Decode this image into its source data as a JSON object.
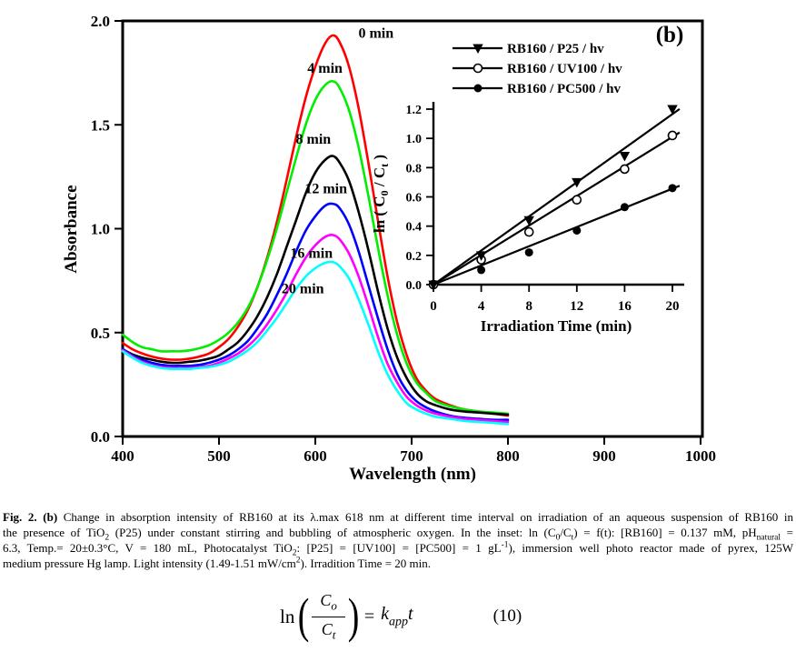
{
  "figure": {
    "panel_label": "(b)"
  },
  "chart_data": [
    {
      "type": "line",
      "title": "",
      "xlabel": "Wavelength (nm)",
      "ylabel": "Absorbance",
      "xlim": [
        400,
        1000
      ],
      "ylim": [
        0.0,
        2.0
      ],
      "grid": false,
      "xtick_values": [
        400,
        500,
        600,
        700,
        800,
        900,
        1000
      ],
      "xtick_labels": [
        "400",
        "500",
        "600",
        "700",
        "800",
        "900",
        "1000"
      ],
      "ytick_values": [
        0.0,
        0.5,
        1.0,
        1.5,
        2.0
      ],
      "ytick_labels": [
        "0.0",
        "0.5",
        "1.0",
        "1.5",
        "2.0"
      ],
      "x": [
        400,
        410,
        420,
        430,
        440,
        450,
        460,
        470,
        480,
        490,
        500,
        510,
        520,
        530,
        540,
        550,
        560,
        570,
        580,
        590,
        600,
        610,
        618,
        625,
        635,
        645,
        655,
        665,
        675,
        685,
        695,
        705,
        715,
        725,
        740,
        755,
        770,
        785,
        800
      ],
      "series": [
        {
          "name": "0 min",
          "color": "#ff0000",
          "peak_nm": 618,
          "peak_abs": 1.93,
          "label_x": 663,
          "label_y": 1.92,
          "values": [
            0.45,
            0.42,
            0.4,
            0.385,
            0.375,
            0.37,
            0.37,
            0.375,
            0.385,
            0.4,
            0.43,
            0.47,
            0.53,
            0.61,
            0.72,
            0.86,
            1.03,
            1.23,
            1.44,
            1.63,
            1.78,
            1.89,
            1.93,
            1.9,
            1.78,
            1.58,
            1.32,
            1.04,
            0.77,
            0.55,
            0.39,
            0.28,
            0.22,
            0.18,
            0.15,
            0.13,
            0.12,
            0.11,
            0.1
          ]
        },
        {
          "name": "4 min",
          "color": "#00ee00",
          "peak_nm": 618,
          "peak_abs": 1.71,
          "label_x": 610,
          "label_y": 1.75,
          "values": [
            0.49,
            0.455,
            0.43,
            0.42,
            0.41,
            0.41,
            0.41,
            0.415,
            0.425,
            0.44,
            0.465,
            0.5,
            0.55,
            0.62,
            0.72,
            0.85,
            1.0,
            1.17,
            1.34,
            1.5,
            1.62,
            1.69,
            1.71,
            1.68,
            1.57,
            1.39,
            1.16,
            0.91,
            0.68,
            0.49,
            0.35,
            0.26,
            0.21,
            0.17,
            0.145,
            0.13,
            0.12,
            0.115,
            0.11
          ]
        },
        {
          "name": "8 min",
          "color": "#000000",
          "peak_nm": 618,
          "peak_abs": 1.35,
          "label_x": 598,
          "label_y": 1.41,
          "values": [
            0.42,
            0.395,
            0.38,
            0.37,
            0.36,
            0.355,
            0.355,
            0.36,
            0.365,
            0.375,
            0.39,
            0.42,
            0.455,
            0.51,
            0.58,
            0.67,
            0.78,
            0.91,
            1.04,
            1.17,
            1.27,
            1.33,
            1.35,
            1.32,
            1.23,
            1.08,
            0.9,
            0.7,
            0.52,
            0.38,
            0.28,
            0.21,
            0.17,
            0.15,
            0.13,
            0.12,
            0.115,
            0.11,
            0.105
          ]
        },
        {
          "name": "12 min",
          "color": "#0000ff",
          "peak_nm": 618,
          "peak_abs": 1.12,
          "label_x": 611,
          "label_y": 1.17,
          "values": [
            0.42,
            0.39,
            0.37,
            0.355,
            0.345,
            0.34,
            0.34,
            0.34,
            0.345,
            0.355,
            0.37,
            0.39,
            0.42,
            0.46,
            0.52,
            0.59,
            0.68,
            0.78,
            0.89,
            0.99,
            1.06,
            1.11,
            1.12,
            1.1,
            1.02,
            0.89,
            0.73,
            0.57,
            0.42,
            0.3,
            0.22,
            0.17,
            0.14,
            0.12,
            0.1,
            0.09,
            0.085,
            0.08,
            0.08
          ]
        },
        {
          "name": "16 min",
          "color": "#ff00ff",
          "peak_nm": 618,
          "peak_abs": 0.97,
          "label_x": 596,
          "label_y": 0.86,
          "values": [
            0.415,
            0.385,
            0.36,
            0.345,
            0.335,
            0.33,
            0.33,
            0.33,
            0.335,
            0.34,
            0.355,
            0.375,
            0.4,
            0.435,
            0.48,
            0.54,
            0.61,
            0.69,
            0.78,
            0.86,
            0.92,
            0.96,
            0.97,
            0.95,
            0.88,
            0.77,
            0.63,
            0.48,
            0.35,
            0.26,
            0.19,
            0.15,
            0.125,
            0.11,
            0.095,
            0.085,
            0.08,
            0.075,
            0.07
          ]
        },
        {
          "name": "20 min",
          "color": "#00ffff",
          "peak_nm": 618,
          "peak_abs": 0.84,
          "label_x": 587,
          "label_y": 0.69,
          "values": [
            0.41,
            0.38,
            0.355,
            0.34,
            0.33,
            0.325,
            0.325,
            0.325,
            0.33,
            0.335,
            0.345,
            0.36,
            0.385,
            0.415,
            0.455,
            0.51,
            0.57,
            0.64,
            0.71,
            0.77,
            0.81,
            0.835,
            0.84,
            0.82,
            0.76,
            0.66,
            0.54,
            0.41,
            0.3,
            0.22,
            0.16,
            0.13,
            0.11,
            0.095,
            0.085,
            0.075,
            0.07,
            0.065,
            0.06
          ]
        }
      ]
    },
    {
      "type": "scatter",
      "title": "",
      "xlabel": "Irradiation Time (min)",
      "ylabel_parts": [
        {
          "text": "ln ( C"
        },
        {
          "text": "0",
          "sub": true
        },
        {
          "text": " / C"
        },
        {
          "text": "t",
          "sub": true
        },
        {
          "text": " )"
        }
      ],
      "xlim": [
        0,
        21.5
      ],
      "ylim": [
        0.0,
        1.25
      ],
      "grid": false,
      "legend_position": "top",
      "xtick_values": [
        0,
        4,
        8,
        12,
        16,
        20
      ],
      "xtick_labels": [
        "0",
        "4",
        "8",
        "12",
        "16",
        "20"
      ],
      "ytick_values": [
        0.0,
        0.2,
        0.4,
        0.6,
        0.8,
        1.0,
        1.2
      ],
      "ytick_labels": [
        "0.0",
        "0.2",
        "0.4",
        "0.6",
        "0.8",
        "1.0",
        "1.2"
      ],
      "x": [
        0,
        4,
        8,
        12,
        16,
        20
      ],
      "series": [
        {
          "name": "RB160 / PC500 / hv",
          "marker": "circle-filled",
          "values": [
            0,
            0.1,
            0.22,
            0.37,
            0.53,
            0.66
          ],
          "fit_slope": 0.0328,
          "fit_x_end": 20.6
        },
        {
          "name": "RB160 / UV100 / hv",
          "marker": "circle-open",
          "values": [
            0,
            0.17,
            0.36,
            0.58,
            0.79,
            1.02
          ],
          "fit_slope": 0.0505,
          "fit_x_end": 20.6
        },
        {
          "name": "RB160 / P25 / hv",
          "marker": "triangle-down-filled",
          "values": [
            0,
            0.2,
            0.44,
            0.7,
            0.88,
            1.2
          ],
          "fit_slope": 0.0583,
          "fit_x_end": 20.6
        }
      ]
    }
  ],
  "caption": {
    "justified_line_count": 3,
    "lines": [
      [
        {
          "text": "Fig. 2. (b)",
          "bold": true
        },
        {
          "text": " Change in absorption intensity of RB160 at its λ.max 618 nm at different time interval on irradiation of an aqueous suspension of RB160 in"
        }
      ],
      [
        {
          "text": "the presence of TiO"
        },
        {
          "text": "2",
          "sub": true
        },
        {
          "text": " (P25) under constant stirring and bubbling of atmospheric oxygen. In the inset: ln (C"
        },
        {
          "text": "0",
          "sub": true
        },
        {
          "text": "/C"
        },
        {
          "text": "t",
          "sub": true
        },
        {
          "text": ") = f(t): [RB160] = 0.137 mM, pH"
        },
        {
          "text": "natural",
          "sub": true
        },
        {
          "text": " ="
        }
      ],
      [
        {
          "text": "6.3, Temp.= 20±0.3°C, V = 180 mL, Photocatalyst TiO"
        },
        {
          "text": "2",
          "sub": true
        },
        {
          "text": ": [P25] = [UV100] = [PC500] = 1 gL"
        },
        {
          "text": "-1",
          "sup": true
        },
        {
          "text": "), immersion well photo reactor made of pyrex, 125W"
        }
      ],
      [
        {
          "text": "medium pressure Hg lamp. Light intensity (1.49-1.51 mW/cm"
        },
        {
          "text": "2",
          "sup": true
        },
        {
          "text": "). Irradition Time = 20 min."
        }
      ]
    ]
  },
  "equation": {
    "ln": "ln",
    "open_paren": "(",
    "numerator_base": "C",
    "numerator_sub": "o",
    "denominator_base": "C",
    "denominator_sub": "t",
    "close_paren": ")",
    "equals": "=",
    "rhs_base": "k",
    "rhs_sub": "app",
    "rhs_var": "t",
    "number": "(10)"
  }
}
